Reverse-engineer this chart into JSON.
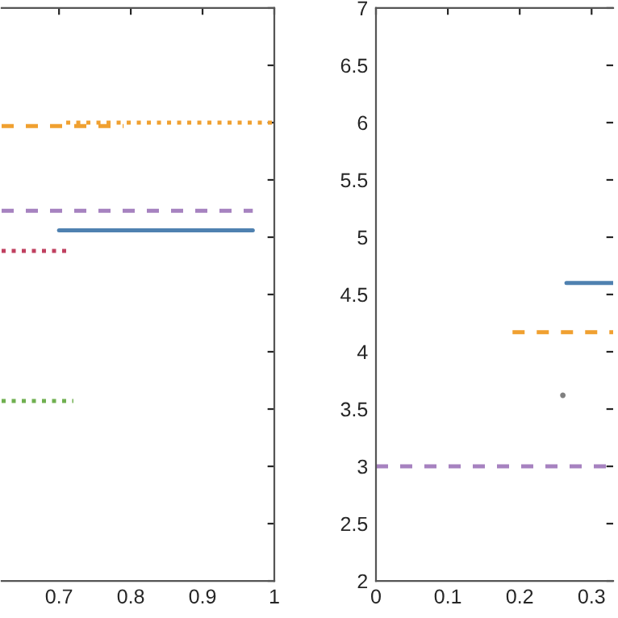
{
  "chart_data": [
    {
      "type": "line",
      "xlim": [
        0.62,
        1
      ],
      "xticks": [
        0.7,
        0.8,
        0.9,
        1
      ],
      "ylim": [
        2,
        7
      ],
      "yticks": [
        2,
        2.5,
        3,
        3.5,
        4,
        4.5,
        5,
        5.5,
        6,
        6.5,
        7
      ],
      "tick_labels": "x",
      "marker": "none",
      "series": [
        {
          "color": "#f0a030",
          "line_style": "dashed",
          "x": [
            0.62,
            0.79
          ],
          "values": [
            5.97,
            5.97
          ]
        },
        {
          "color": "#f0a030",
          "line_style": "dotted",
          "x": [
            0.71,
            1
          ],
          "values": [
            6.0,
            6.0
          ]
        },
        {
          "color": "#a682c0",
          "line_style": "dashed",
          "x": [
            0.62,
            0.97
          ],
          "values": [
            5.23,
            5.23
          ]
        },
        {
          "color": "#4f81b0",
          "line_style": "solid",
          "x": [
            0.7,
            0.97
          ],
          "values": [
            5.06,
            5.06
          ]
        },
        {
          "color": "#c04060",
          "line_style": "dotted",
          "x": [
            0.62,
            0.71
          ],
          "values": [
            4.88,
            4.88
          ]
        },
        {
          "color": "#70b050",
          "line_style": "dotted",
          "x": [
            0.62,
            0.72
          ],
          "values": [
            3.57,
            3.57
          ]
        }
      ]
    },
    {
      "type": "line",
      "xlim": [
        0,
        0.33
      ],
      "xticks": [
        0,
        0.1,
        0.2,
        0.3
      ],
      "ylim": [
        2,
        7
      ],
      "yticks": [
        2,
        2.5,
        3,
        3.5,
        4,
        4.5,
        5,
        5.5,
        6,
        6.5,
        7
      ],
      "marker": "none",
      "series": [
        {
          "color": "#a682c0",
          "line_style": "dashed",
          "x": [
            0,
            0.33
          ],
          "values": [
            3.0,
            3.0
          ]
        },
        {
          "color": "#f0a030",
          "line_style": "dashed",
          "x": [
            0.19,
            0.33
          ],
          "values": [
            4.17,
            4.17
          ]
        },
        {
          "color": "#4f81b0",
          "line_style": "solid",
          "x": [
            0.265,
            0.33
          ],
          "values": [
            4.6,
            4.6
          ]
        },
        {
          "type": "scatter",
          "color": "#808080",
          "x": [
            0.26
          ],
          "values": [
            3.62
          ]
        }
      ]
    }
  ]
}
